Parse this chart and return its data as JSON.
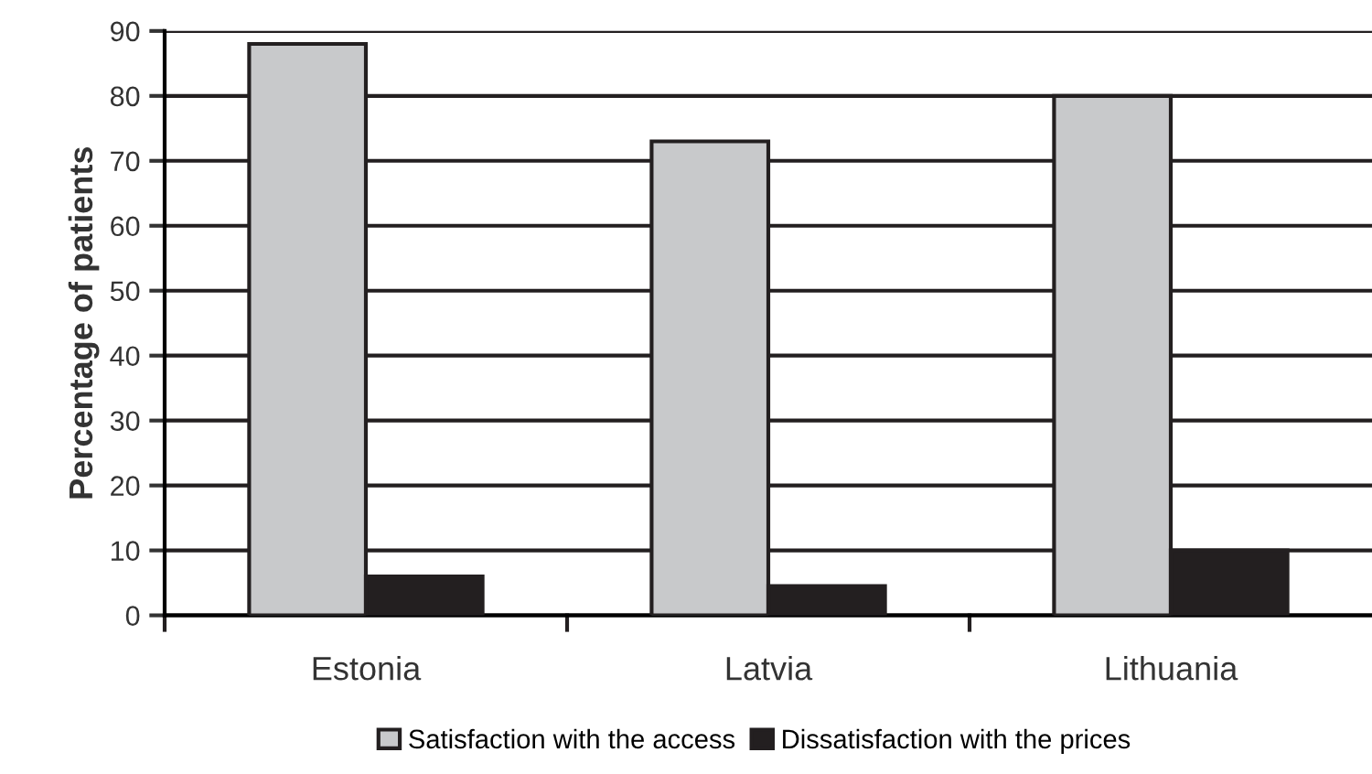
{
  "chart_data": {
    "type": "bar",
    "ylabel": "Percentage of patients",
    "categories": [
      "Estonia",
      "Latvia",
      "Lithuania"
    ],
    "series": [
      {
        "name": "Satisfaction with the access",
        "color": "#c8c9cb",
        "values": [
          88,
          73,
          80
        ]
      },
      {
        "name": "Dissatisfaction with the prices",
        "color": "#231f20",
        "values": [
          6,
          4.5,
          10
        ]
      }
    ],
    "ylim": [
      0,
      90
    ],
    "yticks": [
      0,
      10,
      20,
      30,
      40,
      50,
      60,
      70,
      80,
      90
    ],
    "grid": "y",
    "legend": "bottom"
  }
}
